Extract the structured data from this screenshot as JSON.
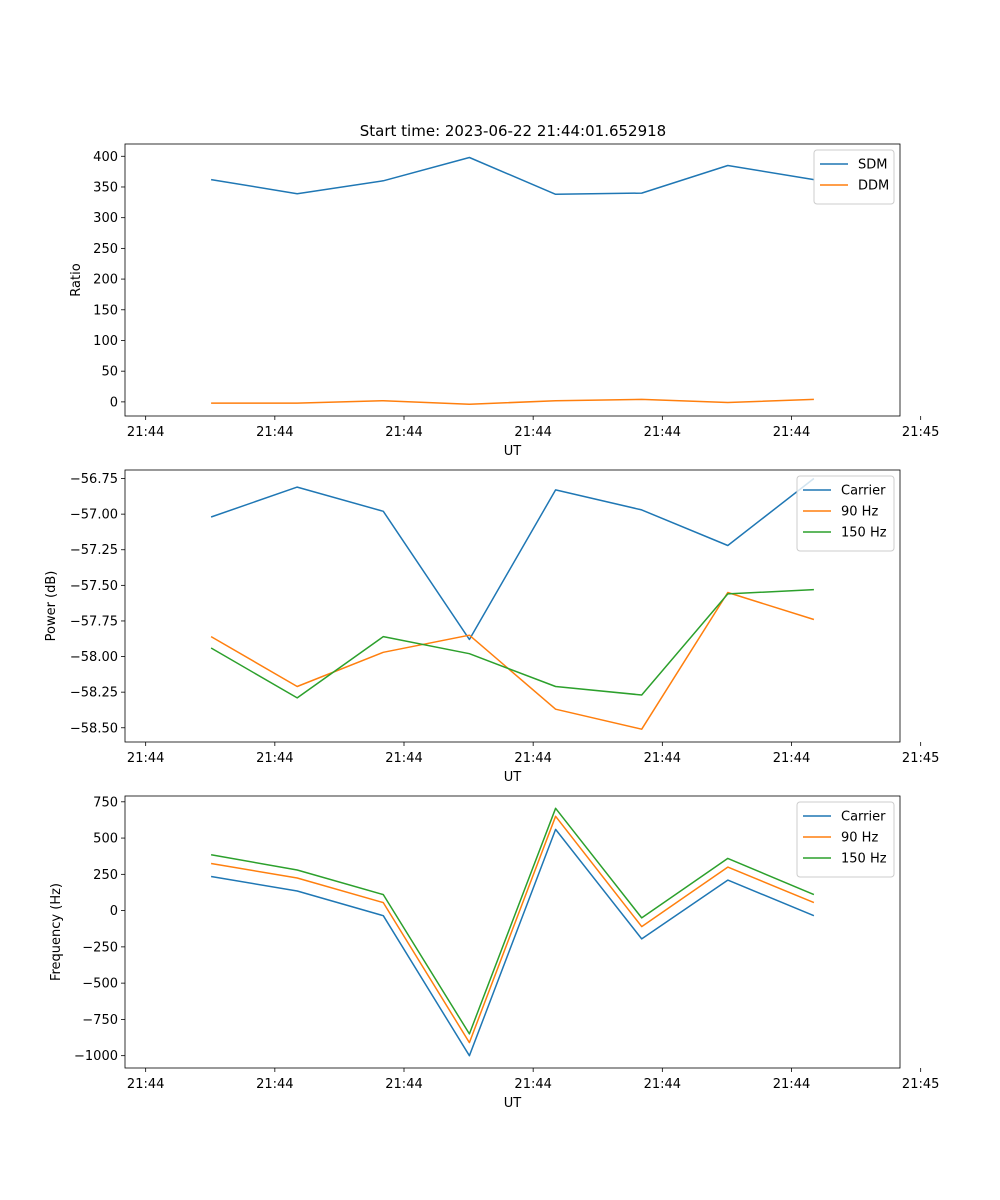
{
  "figure": {
    "title": "Start time: 2023-06-22 21:44:01.652918"
  },
  "chart_data": [
    {
      "type": "line",
      "xlabel": "UT",
      "ylabel": "Ratio",
      "xlim": [
        0,
        9
      ],
      "ylim": [
        -23,
        420
      ],
      "x_tick_positions": [
        0.24,
        1.74,
        3.24,
        4.74,
        6.24,
        7.74,
        9.24
      ],
      "x_tick_labels": [
        "21:44",
        "21:44",
        "21:44",
        "21:44",
        "21:44",
        "21:44",
        "21:45"
      ],
      "y_ticks": [
        0,
        50,
        100,
        150,
        200,
        250,
        300,
        350,
        400
      ],
      "y_tick_labels": [
        "0",
        "50",
        "100",
        "150",
        "200",
        "250",
        "300",
        "350",
        "400"
      ],
      "x": [
        1,
        2,
        3,
        4,
        5,
        6,
        7,
        8
      ],
      "series": [
        {
          "name": "SDM",
          "color": "#1f77b4",
          "values": [
            362,
            339,
            360,
            398,
            338,
            340,
            385,
            362
          ]
        },
        {
          "name": "DDM",
          "color": "#ff7f0e",
          "values": [
            -2,
            -2,
            2,
            -4,
            2,
            4,
            -1,
            4
          ]
        }
      ],
      "legend": "top-right",
      "grid": false
    },
    {
      "type": "line",
      "xlabel": "UT",
      "ylabel": "Power (dB)",
      "xlim": [
        0,
        9
      ],
      "ylim": [
        -58.6,
        -56.69
      ],
      "x_tick_positions": [
        0.24,
        1.74,
        3.24,
        4.74,
        6.24,
        7.74,
        9.24
      ],
      "x_tick_labels": [
        "21:44",
        "21:44",
        "21:44",
        "21:44",
        "21:44",
        "21:44",
        "21:45"
      ],
      "y_ticks": [
        -56.75,
        -57.0,
        -57.25,
        -57.5,
        -57.75,
        -58.0,
        -58.25,
        -58.5
      ],
      "y_tick_labels": [
        "−56.75",
        "−57.00",
        "−57.25",
        "−57.50",
        "−57.75",
        "−58.00",
        "−58.25",
        "−58.50"
      ],
      "x": [
        1,
        2,
        3,
        4,
        5,
        6,
        7,
        8
      ],
      "series": [
        {
          "name": "Carrier",
          "color": "#1f77b4",
          "values": [
            -57.02,
            -56.81,
            -56.98,
            -57.88,
            -56.83,
            -56.97,
            -57.22,
            -56.75
          ]
        },
        {
          "name": "90 Hz",
          "color": "#ff7f0e",
          "values": [
            -57.86,
            -58.21,
            -57.97,
            -57.85,
            -58.37,
            -58.51,
            -57.55,
            -57.74
          ]
        },
        {
          "name": "150 Hz",
          "color": "#2ca02c",
          "values": [
            -57.94,
            -58.29,
            -57.86,
            -57.98,
            -58.21,
            -58.27,
            -57.56,
            -57.53
          ]
        }
      ],
      "legend": "top-right",
      "grid": false
    },
    {
      "type": "line",
      "xlabel": "UT",
      "ylabel": "Frequency (Hz)",
      "xlim": [
        0,
        9
      ],
      "ylim": [
        -1085,
        790
      ],
      "x_tick_positions": [
        0.24,
        1.74,
        3.24,
        4.74,
        6.24,
        7.74,
        9.24
      ],
      "x_tick_labels": [
        "21:44",
        "21:44",
        "21:44",
        "21:44",
        "21:44",
        "21:44",
        "21:45"
      ],
      "y_ticks": [
        750,
        500,
        250,
        0,
        -250,
        -500,
        -750,
        -1000
      ],
      "y_tick_labels": [
        "750",
        "500",
        "250",
        "0",
        "−250",
        "−500",
        "−750",
        "−1000"
      ],
      "x": [
        1,
        2,
        3,
        4,
        5,
        6,
        7,
        8
      ],
      "series": [
        {
          "name": "Carrier",
          "color": "#1f77b4",
          "values": [
            235,
            135,
            -35,
            -1000,
            560,
            -195,
            210,
            -35
          ]
        },
        {
          "name": "90 Hz",
          "color": "#ff7f0e",
          "values": [
            325,
            225,
            55,
            -910,
            650,
            -110,
            300,
            55
          ]
        },
        {
          "name": "150 Hz",
          "color": "#2ca02c",
          "values": [
            385,
            280,
            110,
            -850,
            705,
            -50,
            360,
            110
          ]
        }
      ],
      "legend": "top-right",
      "grid": false
    }
  ]
}
